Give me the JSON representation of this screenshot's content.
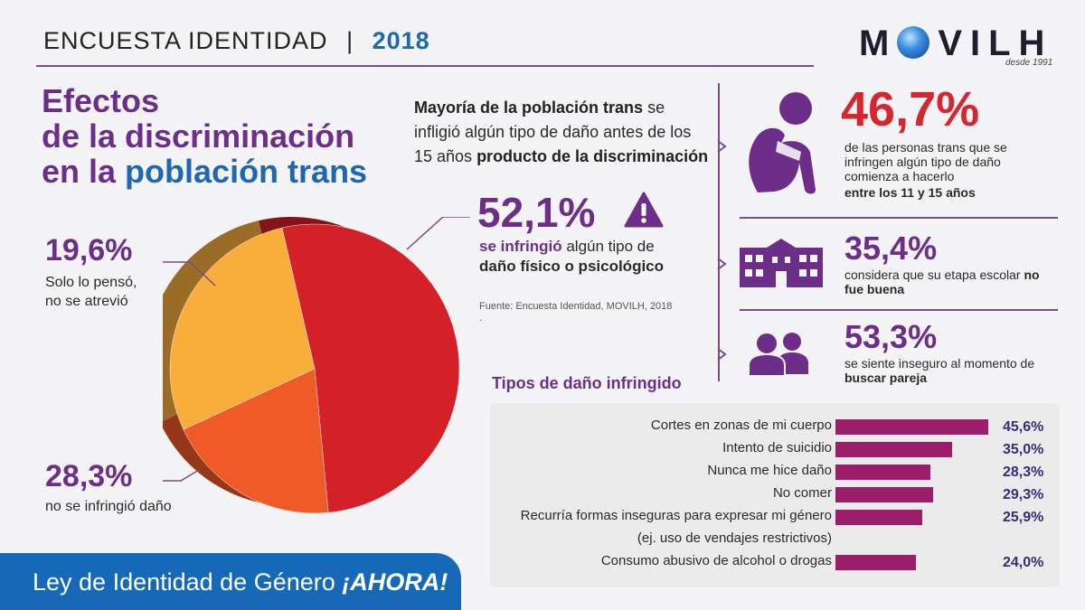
{
  "header": {
    "title": "ENCUESTA IDENTIDAD",
    "separator": "|",
    "year": "2018"
  },
  "logo": {
    "name_pre": "M",
    "name_post": "VILH",
    "tagline": "desde 1991"
  },
  "main_title": {
    "line1": "Efectos",
    "line2": "de la discriminación",
    "line3_pre": "en la ",
    "line3_blue": "población trans"
  },
  "intro": {
    "bold1": "Mayoría de la población trans",
    "text1": " se infligió algún tipo de daño antes de los 15 años ",
    "bold2": "producto de la discriminación"
  },
  "highlight": {
    "value": "52,1%",
    "desc_bold": "se infringió",
    "desc_text1": " algún tipo de ",
    "desc_bold2": "daño físico o psicológico",
    "source": "Fuente: Encuesta Identidad, MOVILH, 2018",
    "source_dot": "."
  },
  "pie_labels": [
    {
      "value": "19,6%",
      "line1": "Solo lo pensó,",
      "line2": "no se atrevió"
    },
    {
      "value": "28,3%",
      "line1": "no se infringió daño"
    }
  ],
  "stats": [
    {
      "value": "46,7%",
      "text": "de las personas trans que se infringen algún tipo de daño comienza a hacerlo",
      "bold": "entre los 11 y 15 años",
      "icon": "person-hugging-knees-icon"
    },
    {
      "value": "35,4%",
      "text": "considera que su etapa escolar ",
      "bold": "no fue buena",
      "icon": "school-building-icon"
    },
    {
      "value": "53,3%",
      "text": "se siente inseguro al momento de ",
      "bold": "buscar pareja",
      "icon": "two-people-icon"
    }
  ],
  "bars_title": "Tipos de daño infringido",
  "footer": {
    "text": "Ley de Identidad de Género ",
    "bold": "¡AHORA!"
  },
  "colors": {
    "purple": "#6d2e8a",
    "red": "#d4272f",
    "blue": "#1669b6",
    "bar": "#9c1d6a"
  },
  "chart_data": [
    {
      "type": "pie",
      "labels": [
        "se infringió algún tipo de daño físico o psicológico",
        "Solo lo pensó, no se atrevió",
        "no se infringió daño"
      ],
      "values": [
        52.1,
        19.6,
        28.3
      ],
      "colors": [
        "#d42128",
        "#f05a28",
        "#f9ae3b"
      ]
    },
    {
      "type": "bar",
      "title": "Tipos de daño infringido",
      "categories": [
        "Cortes en zonas de mi cuerpo",
        "Intento de suicidio",
        "Nunca me hice daño",
        "No comer",
        "Recurría formas inseguras para expresar mi género",
        "(ej. uso de vendajes restrictivos)",
        "Consumo abusivo de alcohol o drogas"
      ],
      "values": [
        45.6,
        35.0,
        28.3,
        29.3,
        25.9,
        null,
        24.0
      ],
      "value_labels": [
        "45,6%",
        "35,0%",
        "28,3%",
        "29,3%",
        "25,9%",
        "",
        "24,0%"
      ]
    }
  ]
}
